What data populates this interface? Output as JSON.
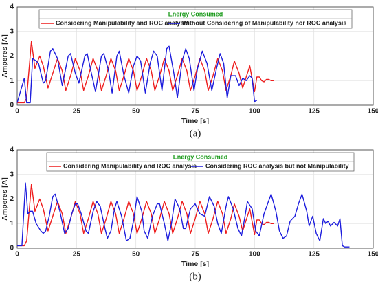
{
  "chart_data": [
    {
      "type": "line",
      "legend_title": "Energy Consumed",
      "xlabel": "Time [s]",
      "ylabel": "Amperes [A]",
      "caption": "(a)",
      "xlim": [
        0,
        150
      ],
      "xticks": [
        0,
        25,
        50,
        75,
        100,
        125,
        150
      ],
      "ylim": [
        0,
        4
      ],
      "yticks": [
        0,
        1,
        2,
        3,
        4
      ],
      "grid": true,
      "series": [
        {
          "name": "Considering Manipulability and ROC analysis",
          "color": "#ee1c1c",
          "x": [
            0,
            3,
            4,
            6,
            7.5,
            9.5,
            11,
            13,
            15,
            17,
            19,
            20.5,
            22.5,
            24.5,
            26.5,
            28,
            30,
            32,
            34,
            35.5,
            37.5,
            39.5,
            41.5,
            43,
            45,
            47,
            49,
            50.5,
            52.5,
            54.5,
            56.5,
            58,
            60,
            62,
            64,
            65.5,
            67.5,
            69.5,
            71.5,
            73,
            75,
            77,
            79,
            80.5,
            82.5,
            84.5,
            86.5,
            88,
            90,
            91.5,
            93.5,
            95,
            97,
            98,
            100,
            101,
            102,
            103,
            104,
            105,
            106,
            107,
            108
          ],
          "values": [
            0.1,
            0.1,
            0.3,
            2.6,
            1.5,
            2.0,
            1.6,
            0.7,
            1.3,
            1.9,
            1.4,
            0.6,
            1.2,
            1.9,
            1.4,
            0.6,
            1.2,
            1.9,
            1.4,
            0.6,
            1.2,
            1.9,
            1.4,
            0.6,
            1.2,
            1.9,
            1.4,
            0.6,
            1.2,
            1.9,
            1.4,
            0.6,
            1.2,
            1.9,
            1.4,
            0.6,
            1.2,
            1.9,
            1.4,
            0.6,
            1.2,
            1.9,
            1.4,
            0.6,
            1.2,
            1.9,
            1.4,
            0.6,
            1.2,
            1.8,
            1.3,
            0.7,
            1.3,
            1.6,
            0.55,
            1.15,
            1.15,
            1.0,
            0.95,
            1.05,
            1.05,
            1.0,
            1.0
          ]
        },
        {
          "name": "Without Considering of Manipulability nor ROC analysis",
          "color": "#1c1cdd",
          "x": [
            0,
            3,
            4,
            5.5,
            6.5,
            8,
            9,
            11,
            12,
            14,
            15,
            17,
            19,
            21.5,
            22.5,
            24.5,
            26,
            28.5,
            29.5,
            31.5,
            33,
            35.5,
            36.5,
            38.5,
            40,
            42,
            43,
            45,
            47,
            49,
            50.5,
            52,
            54,
            56,
            57.5,
            59,
            61,
            63,
            64,
            66,
            67.5,
            69.5,
            71,
            72.5,
            74.5,
            76,
            78,
            80,
            82,
            84,
            85.5,
            87,
            88.5,
            90,
            92,
            93.5,
            95,
            96.5,
            98,
            99,
            100,
            101
          ],
          "values": [
            0.1,
            1.1,
            0.1,
            0.1,
            1.9,
            1.8,
            1.7,
            0.9,
            1.0,
            2.2,
            2.3,
            1.9,
            0.8,
            2.0,
            2.1,
            1.3,
            0.9,
            2.0,
            2.1,
            1.2,
            0.55,
            2.0,
            2.1,
            1.4,
            0.5,
            2.0,
            2.2,
            1.2,
            0.5,
            1.6,
            2.0,
            1.8,
            0.5,
            1.7,
            2.2,
            2.0,
            0.6,
            2.3,
            2.4,
            1.3,
            0.3,
            1.8,
            2.3,
            1.9,
            0.6,
            1.5,
            2.2,
            1.7,
            0.6,
            1.5,
            2.1,
            1.7,
            0.3,
            1.2,
            1.2,
            0.8,
            1.1,
            1.0,
            1.2,
            1.1,
            0.15,
            0.2
          ]
        }
      ]
    },
    {
      "type": "line",
      "legend_title": "Energy Consumed",
      "xlabel": "Time [s]",
      "ylabel": "Amperes [A]",
      "caption": "(b)",
      "xlim": [
        0,
        150
      ],
      "xticks": [
        0,
        25,
        50,
        75,
        100,
        125,
        150
      ],
      "ylim": [
        0,
        4
      ],
      "yticks": [
        0,
        1,
        2,
        3,
        4
      ],
      "grid": true,
      "series": [
        {
          "name": "Considering Manipulability and ROC analysis",
          "color": "#ee1c1c",
          "x": [
            0,
            3,
            4,
            6,
            7.5,
            9.5,
            11,
            13,
            15,
            17,
            19,
            20.5,
            22.5,
            24.5,
            26.5,
            28,
            30,
            32,
            34,
            35.5,
            37.5,
            39.5,
            41.5,
            43,
            45,
            47,
            49,
            50.5,
            52.5,
            54.5,
            56.5,
            58,
            60,
            62,
            64,
            65.5,
            67.5,
            69.5,
            71.5,
            73,
            75,
            77,
            79,
            80.5,
            82.5,
            84.5,
            86.5,
            88,
            90,
            91.5,
            93.5,
            95,
            97,
            98,
            100,
            101,
            102,
            103,
            104,
            105,
            106,
            107,
            108
          ],
          "values": [
            0.1,
            0.1,
            0.3,
            2.6,
            1.5,
            2.0,
            1.6,
            0.7,
            1.3,
            1.9,
            1.4,
            0.6,
            1.2,
            1.9,
            1.4,
            0.6,
            1.2,
            1.9,
            1.4,
            0.6,
            1.2,
            1.9,
            1.4,
            0.6,
            1.2,
            1.9,
            1.4,
            0.6,
            1.2,
            1.9,
            1.4,
            0.6,
            1.2,
            1.9,
            1.4,
            0.6,
            1.2,
            1.9,
            1.4,
            0.6,
            1.2,
            1.9,
            1.4,
            0.6,
            1.2,
            1.9,
            1.4,
            0.6,
            1.2,
            1.8,
            1.3,
            0.7,
            1.3,
            1.6,
            0.55,
            1.15,
            1.15,
            1.0,
            0.95,
            1.05,
            1.05,
            1.0,
            1.0
          ]
        },
        {
          "name": "Considering ROC analysis but not Manipulability",
          "color": "#1c1cdd",
          "x": [
            0,
            2,
            3.5,
            4.5,
            5.5,
            6.5,
            8,
            10,
            11,
            12,
            13.5,
            15,
            16,
            18,
            20,
            21.5,
            23,
            24.5,
            25.5,
            27,
            29,
            30,
            32,
            33.5,
            35,
            37,
            38,
            39.5,
            41,
            42,
            44,
            46,
            47.5,
            49,
            50.5,
            52.5,
            53.5,
            55,
            57,
            59,
            60,
            62,
            63.5,
            65,
            66.5,
            68.5,
            70,
            71,
            73,
            75,
            77,
            79,
            81,
            83,
            84.5,
            86,
            88,
            89,
            91,
            93,
            94.5,
            96,
            97,
            99,
            100.5,
            102,
            104,
            105.5,
            107,
            109,
            110.5,
            112,
            113.5,
            115,
            117,
            118.5,
            120,
            122,
            123,
            124.5,
            126,
            127.5,
            129,
            130,
            131,
            132,
            133.5,
            135,
            136,
            137,
            138,
            140
          ],
          "values": [
            0.1,
            0.1,
            2.65,
            1.4,
            1.5,
            1.5,
            1.0,
            0.7,
            0.6,
            0.7,
            1.3,
            2.1,
            2.2,
            1.5,
            0.6,
            0.8,
            1.4,
            1.8,
            1.8,
            1.4,
            0.7,
            0.6,
            1.5,
            1.9,
            1.7,
            0.8,
            0.4,
            0.7,
            1.6,
            1.9,
            1.3,
            0.3,
            0.4,
            1.1,
            2.1,
            1.5,
            0.7,
            0.4,
            1.3,
            1.8,
            1.8,
            1.0,
            0.3,
            1.0,
            2.0,
            1.6,
            0.8,
            0.8,
            1.6,
            1.8,
            1.4,
            1.3,
            2.1,
            1.7,
            1.0,
            0.6,
            1.7,
            2.1,
            1.6,
            0.8,
            0.5,
            1.3,
            1.9,
            1.6,
            0.7,
            0.5,
            1.4,
            1.8,
            2.2,
            1.5,
            0.7,
            0.4,
            0.5,
            1.1,
            1.3,
            1.8,
            2.2,
            1.5,
            0.9,
            1.3,
            0.6,
            0.3,
            1.2,
            1.0,
            1.1,
            0.9,
            1.05,
            0.9,
            1.2,
            0.1,
            0.05,
            0.05
          ]
        }
      ]
    }
  ]
}
